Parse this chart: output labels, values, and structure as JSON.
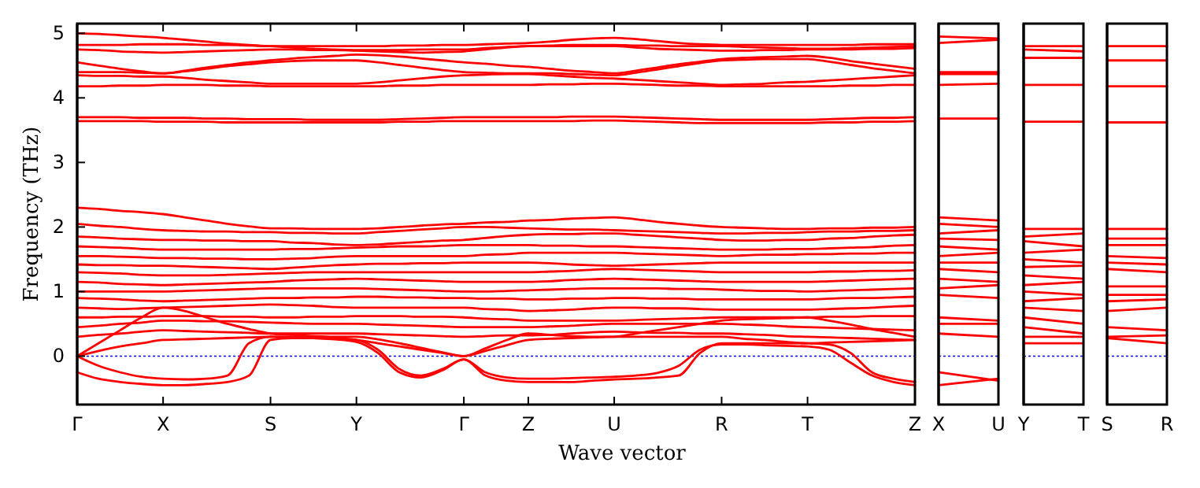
{
  "chart_data": [
    {
      "type": "line",
      "xlabel": "Wave vector",
      "ylabel": "Frequency (THz)",
      "categories": [
        "Γ",
        null,
        null,
        null,
        "X",
        null,
        null,
        null,
        null,
        "S",
        null,
        null,
        null,
        "Y",
        null,
        null,
        null,
        null,
        "Γ",
        null,
        null,
        "Z",
        null,
        null,
        null,
        "U",
        null,
        null,
        null,
        null,
        "R",
        null,
        null,
        null,
        "T",
        null,
        null,
        null,
        null,
        "Z"
      ],
      "ylim": [
        -0.75,
        5.15
      ],
      "yticks": [
        0,
        1,
        2,
        3,
        4,
        5
      ],
      "ref_lines": [
        {
          "axis": "y",
          "value": 0,
          "color": "#0000ff",
          "line_style": "dotted"
        }
      ],
      "series": [
        {
          "color": "#ff0000",
          "values": [
            5.0,
            4.99,
            4.97,
            4.95,
            4.93,
            4.9,
            4.87,
            4.84,
            4.82,
            4.8,
            4.8,
            4.8,
            4.8,
            4.8,
            4.8,
            4.81,
            4.81,
            4.82,
            4.82,
            4.83,
            4.84,
            4.85,
            4.87,
            4.9,
            4.92,
            4.93,
            4.91,
            4.88,
            4.85,
            4.83,
            4.82,
            4.82,
            4.82,
            4.82,
            4.82,
            4.82,
            4.82,
            4.83,
            4.83,
            4.83
          ]
        },
        {
          "color": "#ff0000",
          "values": [
            4.82,
            4.82,
            4.82,
            4.83,
            4.83,
            4.83,
            4.82,
            4.82,
            4.81,
            4.8,
            4.78,
            4.76,
            4.75,
            4.74,
            4.74,
            4.74,
            4.75,
            4.75,
            4.75,
            4.77,
            4.79,
            4.8,
            4.81,
            4.82,
            4.82,
            4.82,
            4.81,
            4.81,
            4.8,
            4.8,
            4.8,
            4.79,
            4.78,
            4.77,
            4.76,
            4.76,
            4.77,
            4.78,
            4.79,
            4.8
          ]
        },
        {
          "color": "#ff0000",
          "values": [
            4.75,
            4.74,
            4.72,
            4.71,
            4.7,
            4.71,
            4.72,
            4.73,
            4.74,
            4.75,
            4.75,
            4.74,
            4.74,
            4.73,
            4.72,
            4.71,
            4.7,
            4.71,
            4.72,
            4.75,
            4.78,
            4.8,
            4.8,
            4.8,
            4.8,
            4.8,
            4.78,
            4.76,
            4.75,
            4.74,
            4.73,
            4.73,
            4.74,
            4.74,
            4.75,
            4.75,
            4.75,
            4.76,
            4.76,
            4.77
          ]
        },
        {
          "color": "#ff0000",
          "values": [
            4.55,
            4.5,
            4.45,
            4.41,
            4.38,
            4.42,
            4.47,
            4.51,
            4.55,
            4.58,
            4.61,
            4.63,
            4.65,
            4.67,
            4.66,
            4.64,
            4.61,
            4.58,
            4.55,
            4.53,
            4.5,
            4.48,
            4.45,
            4.42,
            4.4,
            4.38,
            4.42,
            4.47,
            4.52,
            4.56,
            4.6,
            4.62,
            4.63,
            4.64,
            4.65,
            4.62,
            4.57,
            4.53,
            4.49,
            4.45
          ]
        },
        {
          "color": "#ff0000",
          "values": [
            4.4,
            4.4,
            4.4,
            4.39,
            4.38,
            4.41,
            4.45,
            4.49,
            4.52,
            4.55,
            4.57,
            4.58,
            4.58,
            4.58,
            4.55,
            4.51,
            4.47,
            4.43,
            4.4,
            4.39,
            4.38,
            4.38,
            4.38,
            4.37,
            4.36,
            4.35,
            4.39,
            4.44,
            4.49,
            4.54,
            4.58,
            4.59,
            4.6,
            4.6,
            4.6,
            4.56,
            4.51,
            4.46,
            4.42,
            4.38
          ]
        },
        {
          "color": "#ff0000",
          "values": [
            4.35,
            4.34,
            4.34,
            4.33,
            4.33,
            4.31,
            4.28,
            4.26,
            4.24,
            4.22,
            4.22,
            4.22,
            4.22,
            4.22,
            4.24,
            4.27,
            4.3,
            4.33,
            4.35,
            4.36,
            4.37,
            4.37,
            4.35,
            4.33,
            4.31,
            4.3,
            4.28,
            4.26,
            4.24,
            4.22,
            4.2,
            4.21,
            4.22,
            4.24,
            4.25,
            4.27,
            4.29,
            4.31,
            4.33,
            4.35
          ]
        },
        {
          "color": "#ff0000",
          "values": [
            4.18,
            4.18,
            4.19,
            4.19,
            4.2,
            4.2,
            4.2,
            4.19,
            4.19,
            4.18,
            4.18,
            4.18,
            4.18,
            4.18,
            4.18,
            4.19,
            4.19,
            4.2,
            4.2,
            4.2,
            4.2,
            4.2,
            4.21,
            4.21,
            4.22,
            4.22,
            4.21,
            4.2,
            4.19,
            4.19,
            4.18,
            4.18,
            4.18,
            4.18,
            4.18,
            4.18,
            4.19,
            4.19,
            4.2,
            4.2
          ]
        },
        {
          "color": "#ff0000",
          "values": [
            3.7,
            3.7,
            3.7,
            3.69,
            3.69,
            3.69,
            3.68,
            3.68,
            3.67,
            3.67,
            3.67,
            3.66,
            3.66,
            3.66,
            3.66,
            3.67,
            3.68,
            3.69,
            3.7,
            3.7,
            3.7,
            3.7,
            3.7,
            3.71,
            3.71,
            3.71,
            3.7,
            3.69,
            3.68,
            3.67,
            3.66,
            3.66,
            3.66,
            3.66,
            3.66,
            3.67,
            3.68,
            3.69,
            3.69,
            3.7
          ]
        },
        {
          "color": "#ff0000",
          "values": [
            3.64,
            3.64,
            3.64,
            3.64,
            3.63,
            3.63,
            3.63,
            3.62,
            3.62,
            3.62,
            3.62,
            3.62,
            3.62,
            3.62,
            3.62,
            3.63,
            3.63,
            3.64,
            3.64,
            3.64,
            3.64,
            3.64,
            3.64,
            3.64,
            3.65,
            3.65,
            3.64,
            3.63,
            3.62,
            3.61,
            3.61,
            3.61,
            3.61,
            3.61,
            3.61,
            3.62,
            3.62,
            3.63,
            3.63,
            3.64
          ]
        },
        {
          "color": "#ff0000",
          "values": [
            2.3,
            2.28,
            2.25,
            2.23,
            2.2,
            2.15,
            2.1,
            2.05,
            2.01,
            1.98,
            1.98,
            1.97,
            1.97,
            1.97,
            1.98,
            2.0,
            2.02,
            2.04,
            2.05,
            2.07,
            2.08,
            2.1,
            2.11,
            2.13,
            2.14,
            2.15,
            2.12,
            2.08,
            2.05,
            2.02,
            2.0,
            1.99,
            1.98,
            1.97,
            1.97,
            1.98,
            1.98,
            1.99,
            1.99,
            2.0
          ]
        },
        {
          "color": "#ff0000",
          "values": [
            2.05,
            2.02,
            2.0,
            1.97,
            1.95,
            1.94,
            1.93,
            1.93,
            1.92,
            1.92,
            1.91,
            1.91,
            1.9,
            1.9,
            1.92,
            1.94,
            1.96,
            1.98,
            2.0,
            2.0,
            1.99,
            1.98,
            1.97,
            1.96,
            1.96,
            1.95,
            1.94,
            1.93,
            1.92,
            1.91,
            1.9,
            1.9,
            1.91,
            1.91,
            1.92,
            1.93,
            1.93,
            1.94,
            1.94,
            1.95
          ]
        },
        {
          "color": "#ff0000",
          "values": [
            1.85,
            1.84,
            1.82,
            1.81,
            1.8,
            1.8,
            1.79,
            1.79,
            1.78,
            1.78,
            1.76,
            1.75,
            1.73,
            1.72,
            1.73,
            1.75,
            1.77,
            1.79,
            1.8,
            1.83,
            1.86,
            1.88,
            1.89,
            1.89,
            1.9,
            1.9,
            1.88,
            1.86,
            1.84,
            1.82,
            1.8,
            1.79,
            1.79,
            1.8,
            1.8,
            1.82,
            1.83,
            1.85,
            1.87,
            1.88
          ]
        },
        {
          "color": "#ff0000",
          "values": [
            1.7,
            1.69,
            1.68,
            1.66,
            1.65,
            1.65,
            1.65,
            1.65,
            1.65,
            1.65,
            1.66,
            1.66,
            1.67,
            1.68,
            1.69,
            1.7,
            1.7,
            1.71,
            1.72,
            1.72,
            1.72,
            1.72,
            1.71,
            1.71,
            1.7,
            1.7,
            1.69,
            1.68,
            1.67,
            1.66,
            1.65,
            1.65,
            1.65,
            1.66,
            1.66,
            1.67,
            1.68,
            1.69,
            1.71,
            1.72
          ]
        },
        {
          "color": "#ff0000",
          "values": [
            1.55,
            1.55,
            1.54,
            1.53,
            1.52,
            1.52,
            1.51,
            1.51,
            1.5,
            1.5,
            1.51,
            1.52,
            1.54,
            1.55,
            1.55,
            1.55,
            1.55,
            1.55,
            1.55,
            1.57,
            1.58,
            1.6,
            1.6,
            1.6,
            1.6,
            1.6,
            1.59,
            1.58,
            1.57,
            1.56,
            1.55,
            1.56,
            1.57,
            1.57,
            1.58,
            1.58,
            1.59,
            1.59,
            1.6,
            1.6
          ]
        },
        {
          "color": "#ff0000",
          "values": [
            1.42,
            1.41,
            1.41,
            1.4,
            1.4,
            1.39,
            1.38,
            1.37,
            1.36,
            1.35,
            1.37,
            1.39,
            1.41,
            1.42,
            1.43,
            1.43,
            1.44,
            1.44,
            1.45,
            1.45,
            1.45,
            1.45,
            1.44,
            1.42,
            1.41,
            1.4,
            1.41,
            1.42,
            1.43,
            1.44,
            1.45,
            1.45,
            1.45,
            1.45,
            1.45,
            1.45,
            1.45,
            1.45,
            1.45,
            1.45
          ]
        },
        {
          "color": "#ff0000",
          "values": [
            1.3,
            1.29,
            1.28,
            1.26,
            1.25,
            1.25,
            1.25,
            1.26,
            1.27,
            1.28,
            1.29,
            1.3,
            1.3,
            1.3,
            1.3,
            1.3,
            1.3,
            1.3,
            1.3,
            1.3,
            1.3,
            1.3,
            1.31,
            1.32,
            1.34,
            1.35,
            1.34,
            1.33,
            1.32,
            1.31,
            1.3,
            1.3,
            1.3,
            1.3,
            1.3,
            1.31,
            1.31,
            1.32,
            1.32,
            1.33
          ]
        },
        {
          "color": "#ff0000",
          "values": [
            1.15,
            1.14,
            1.12,
            1.11,
            1.1,
            1.11,
            1.12,
            1.13,
            1.14,
            1.15,
            1.17,
            1.18,
            1.19,
            1.2,
            1.19,
            1.18,
            1.17,
            1.16,
            1.15,
            1.15,
            1.15,
            1.15,
            1.16,
            1.18,
            1.19,
            1.2,
            1.19,
            1.18,
            1.17,
            1.16,
            1.15,
            1.15,
            1.15,
            1.15,
            1.15,
            1.16,
            1.17,
            1.18,
            1.19,
            1.2
          ]
        },
        {
          "color": "#ff0000",
          "values": [
            1.0,
            1.0,
            1.0,
            1.0,
            1.0,
            1.01,
            1.02,
            1.03,
            1.04,
            1.05,
            1.05,
            1.05,
            1.05,
            1.05,
            1.04,
            1.03,
            1.02,
            1.01,
            1.0,
            1.0,
            1.01,
            1.02,
            1.03,
            1.04,
            1.05,
            1.05,
            1.05,
            1.05,
            1.04,
            1.04,
            1.03,
            1.02,
            1.01,
            1.01,
            1.0,
            1.01,
            1.02,
            1.03,
            1.04,
            1.05
          ]
        },
        {
          "color": "#ff0000",
          "values": [
            0.9,
            0.89,
            0.88,
            0.86,
            0.85,
            0.86,
            0.87,
            0.88,
            0.89,
            0.9,
            0.9,
            0.91,
            0.91,
            0.92,
            0.92,
            0.91,
            0.91,
            0.9,
            0.9,
            0.89,
            0.89,
            0.88,
            0.88,
            0.89,
            0.89,
            0.9,
            0.9,
            0.89,
            0.89,
            0.88,
            0.88,
            0.88,
            0.88,
            0.88,
            0.88,
            0.89,
            0.9,
            0.9,
            0.91,
            0.92
          ]
        },
        {
          "color": "#ff0000",
          "values": [
            0.75,
            0.74,
            0.73,
            0.74,
            0.75,
            0.76,
            0.77,
            0.78,
            0.79,
            0.8,
            0.79,
            0.78,
            0.76,
            0.75,
            0.75,
            0.75,
            0.75,
            0.75,
            0.75,
            0.73,
            0.72,
            0.7,
            0.71,
            0.72,
            0.74,
            0.75,
            0.75,
            0.74,
            0.74,
            0.73,
            0.72,
            0.72,
            0.72,
            0.72,
            0.72,
            0.73,
            0.74,
            0.75,
            0.77,
            0.78
          ]
        },
        {
          "color": "#ff0000",
          "values": [
            0.6,
            0.6,
            0.61,
            0.61,
            0.62,
            0.62,
            0.62,
            0.61,
            0.61,
            0.6,
            0.6,
            0.61,
            0.61,
            0.62,
            0.62,
            0.62,
            0.61,
            0.61,
            0.6,
            0.58,
            0.57,
            0.55,
            0.55,
            0.55,
            0.55,
            0.55,
            0.56,
            0.57,
            0.58,
            0.59,
            0.6,
            0.6,
            0.6,
            0.6,
            0.6,
            0.61,
            0.61,
            0.62,
            0.62,
            0.62
          ]
        },
        {
          "color": "#ff0000",
          "values": [
            0.45,
            0.47,
            0.5,
            0.52,
            0.55,
            0.55,
            0.54,
            0.54,
            0.53,
            0.52,
            0.51,
            0.5,
            0.5,
            0.5,
            0.49,
            0.48,
            0.47,
            0.46,
            0.45,
            0.45,
            0.45,
            0.45,
            0.46,
            0.47,
            0.49,
            0.5,
            0.5,
            0.5,
            0.5,
            0.5,
            0.5,
            0.49,
            0.48,
            0.46,
            0.45,
            0.44,
            0.43,
            0.42,
            0.41,
            0.4
          ]
        },
        {
          "color": "#ff0000",
          "values": [
            0.3,
            0.33,
            0.35,
            0.38,
            0.4,
            0.39,
            0.38,
            0.37,
            0.36,
            0.35,
            0.35,
            0.35,
            0.35,
            0.35,
            0.34,
            0.33,
            0.32,
            0.31,
            0.3,
            0.31,
            0.32,
            0.32,
            0.33,
            0.35,
            0.37,
            0.38,
            0.37,
            0.36,
            0.36,
            0.35,
            0.35,
            0.34,
            0.33,
            0.31,
            0.3,
            0.29,
            0.28,
            0.27,
            0.26,
            0.25
          ]
        },
        {
          "color": "#ff0000",
          "values": [
            0,
            0.2,
            0.4,
            0.6,
            0.75,
            0.7,
            0.6,
            0.5,
            0.42,
            0.35,
            0.33,
            0.31,
            0.3,
            0.3,
            0.26,
            0.2,
            0.13,
            0.06,
            0,
            0.12,
            0.25,
            0.35,
            0.33,
            0.31,
            0.3,
            0.3,
            0.35,
            0.4,
            0.45,
            0.5,
            0.55,
            0.57,
            0.58,
            0.59,
            0.6,
            0.55,
            0.49,
            0.42,
            0.36,
            0.3
          ]
        },
        {
          "color": "#ff0000",
          "values": [
            0,
            0.08,
            0.15,
            0.2,
            0.25,
            0.26,
            0.27,
            0.28,
            0.29,
            0.3,
            0.29,
            0.28,
            0.27,
            0.25,
            0.2,
            0.15,
            0.1,
            0.05,
            0,
            0.08,
            0.17,
            0.25,
            0.27,
            0.28,
            0.29,
            0.3,
            0.3,
            0.3,
            0.3,
            0.3,
            0.3,
            0.27,
            0.25,
            0.22,
            0.2,
            0.21,
            0.22,
            0.23,
            0.24,
            0.25
          ]
        },
        {
          "color": "#ff0000",
          "values": [
            0,
            -0.15,
            -0.25,
            -0.32,
            -0.35,
            -0.36,
            -0.35,
            -0.3,
            0.2,
            0.3,
            0.3,
            0.3,
            0.28,
            0.25,
            0.1,
            -0.2,
            -0.3,
            -0.2,
            -0.05,
            -0.3,
            -0.38,
            -0.4,
            -0.4,
            -0.4,
            -0.38,
            -0.36,
            -0.35,
            -0.33,
            -0.3,
            0.05,
            0.2,
            0.2,
            0.2,
            0.2,
            0.2,
            0.18,
            0.05,
            -0.25,
            -0.35,
            -0.4
          ]
        },
        {
          "color": "#ff0000",
          "values": [
            -0.25,
            -0.35,
            -0.4,
            -0.43,
            -0.45,
            -0.45,
            -0.43,
            -0.4,
            -0.3,
            0.25,
            0.28,
            0.28,
            0.26,
            0.22,
            0.05,
            -0.25,
            -0.33,
            -0.22,
            -0.05,
            -0.25,
            -0.33,
            -0.35,
            -0.35,
            -0.34,
            -0.33,
            -0.32,
            -0.3,
            -0.26,
            -0.15,
            0.1,
            0.18,
            0.18,
            0.17,
            0.16,
            0.15,
            0.1,
            -0.1,
            -0.3,
            -0.4,
            -0.45
          ]
        }
      ]
    },
    {
      "type": "line",
      "categories": [
        "X",
        "U"
      ],
      "ylim": [
        -0.75,
        5.15
      ],
      "yticks": [
        0,
        1,
        2,
        3,
        4,
        5
      ],
      "tick_labels": "x",
      "ref_lines": [
        {
          "axis": "y",
          "value": 0,
          "color": "#0000ff",
          "line_style": "dotted"
        }
      ],
      "series": [
        {
          "color": "#ff0000",
          "values": [
            4.95,
            4.92
          ]
        },
        {
          "color": "#ff0000",
          "values": [
            4.85,
            4.9
          ]
        },
        {
          "color": "#ff0000",
          "values": [
            4.4,
            4.4
          ]
        },
        {
          "color": "#ff0000",
          "values": [
            4.37,
            4.37
          ]
        },
        {
          "color": "#ff0000",
          "values": [
            4.2,
            4.22
          ]
        },
        {
          "color": "#ff0000",
          "values": [
            3.68,
            3.68
          ]
        },
        {
          "color": "#ff0000",
          "values": [
            2.15,
            2.1
          ]
        },
        {
          "color": "#ff0000",
          "values": [
            2.05,
            2.0
          ]
        },
        {
          "color": "#ff0000",
          "values": [
            1.9,
            1.95
          ]
        },
        {
          "color": "#ff0000",
          "values": [
            1.82,
            1.8
          ]
        },
        {
          "color": "#ff0000",
          "values": [
            1.7,
            1.65
          ]
        },
        {
          "color": "#ff0000",
          "values": [
            1.55,
            1.6
          ]
        },
        {
          "color": "#ff0000",
          "values": [
            1.45,
            1.45
          ]
        },
        {
          "color": "#ff0000",
          "values": [
            1.35,
            1.3
          ]
        },
        {
          "color": "#ff0000",
          "values": [
            1.2,
            1.15
          ]
        },
        {
          "color": "#ff0000",
          "values": [
            1.05,
            1.1
          ]
        },
        {
          "color": "#ff0000",
          "values": [
            0.95,
            0.9
          ]
        },
        {
          "color": "#ff0000",
          "values": [
            0.6,
            0.55
          ]
        },
        {
          "color": "#ff0000",
          "values": [
            0.5,
            0.5
          ]
        },
        {
          "color": "#ff0000",
          "values": [
            0.35,
            0.3
          ]
        },
        {
          "color": "#ff0000",
          "values": [
            -0.25,
            -0.38
          ]
        },
        {
          "color": "#ff0000",
          "values": [
            -0.45,
            -0.35
          ]
        }
      ]
    },
    {
      "type": "line",
      "categories": [
        "Y",
        "T"
      ],
      "ylim": [
        -0.75,
        5.15
      ],
      "yticks": [
        0,
        1,
        2,
        3,
        4,
        5
      ],
      "tick_labels": "x",
      "ref_lines": [
        {
          "axis": "y",
          "value": 0,
          "color": "#0000ff",
          "line_style": "dotted"
        }
      ],
      "series": [
        {
          "color": "#ff0000",
          "values": [
            4.8,
            4.8
          ]
        },
        {
          "color": "#ff0000",
          "values": [
            4.75,
            4.72
          ]
        },
        {
          "color": "#ff0000",
          "values": [
            4.62,
            4.62
          ]
        },
        {
          "color": "#ff0000",
          "values": [
            4.2,
            4.2
          ]
        },
        {
          "color": "#ff0000",
          "values": [
            3.63,
            3.63
          ]
        },
        {
          "color": "#ff0000",
          "values": [
            1.97,
            1.97
          ]
        },
        {
          "color": "#ff0000",
          "values": [
            1.85,
            1.9
          ]
        },
        {
          "color": "#ff0000",
          "values": [
            1.78,
            1.7
          ]
        },
        {
          "color": "#ff0000",
          "values": [
            1.6,
            1.65
          ]
        },
        {
          "color": "#ff0000",
          "values": [
            1.5,
            1.45
          ]
        },
        {
          "color": "#ff0000",
          "values": [
            1.38,
            1.4
          ]
        },
        {
          "color": "#ff0000",
          "values": [
            1.25,
            1.2
          ]
        },
        {
          "color": "#ff0000",
          "values": [
            1.1,
            1.15
          ]
        },
        {
          "color": "#ff0000",
          "values": [
            1.0,
            0.95
          ]
        },
        {
          "color": "#ff0000",
          "values": [
            0.85,
            0.9
          ]
        },
        {
          "color": "#ff0000",
          "values": [
            0.75,
            0.7
          ]
        },
        {
          "color": "#ff0000",
          "values": [
            0.6,
            0.5
          ]
        },
        {
          "color": "#ff0000",
          "values": [
            0.45,
            0.35
          ]
        },
        {
          "color": "#ff0000",
          "values": [
            0.3,
            0.3
          ]
        },
        {
          "color": "#ff0000",
          "values": [
            0.2,
            0.2
          ]
        }
      ]
    },
    {
      "type": "line",
      "categories": [
        "S",
        "R"
      ],
      "ylim": [
        -0.75,
        5.15
      ],
      "yticks": [
        0,
        1,
        2,
        3,
        4,
        5
      ],
      "tick_labels": "x",
      "ref_lines": [
        {
          "axis": "y",
          "value": 0,
          "color": "#0000ff",
          "line_style": "dotted"
        }
      ],
      "series": [
        {
          "color": "#ff0000",
          "values": [
            4.8,
            4.8
          ]
        },
        {
          "color": "#ff0000",
          "values": [
            4.58,
            4.58
          ]
        },
        {
          "color": "#ff0000",
          "values": [
            4.18,
            4.18
          ]
        },
        {
          "color": "#ff0000",
          "values": [
            3.62,
            3.62
          ]
        },
        {
          "color": "#ff0000",
          "values": [
            1.97,
            1.97
          ]
        },
        {
          "color": "#ff0000",
          "values": [
            1.82,
            1.82
          ]
        },
        {
          "color": "#ff0000",
          "values": [
            1.72,
            1.72
          ]
        },
        {
          "color": "#ff0000",
          "values": [
            1.55,
            1.52
          ]
        },
        {
          "color": "#ff0000",
          "values": [
            1.45,
            1.42
          ]
        },
        {
          "color": "#ff0000",
          "values": [
            1.35,
            1.3
          ]
        },
        {
          "color": "#ff0000",
          "values": [
            1.08,
            1.08
          ]
        },
        {
          "color": "#ff0000",
          "values": [
            0.95,
            0.95
          ]
        },
        {
          "color": "#ff0000",
          "values": [
            0.85,
            0.88
          ]
        },
        {
          "color": "#ff0000",
          "values": [
            0.7,
            0.75
          ]
        },
        {
          "color": "#ff0000",
          "values": [
            0.45,
            0.4
          ]
        },
        {
          "color": "#ff0000",
          "values": [
            0.3,
            0.32
          ]
        },
        {
          "color": "#ff0000",
          "values": [
            0.28,
            0.2
          ]
        }
      ]
    }
  ]
}
